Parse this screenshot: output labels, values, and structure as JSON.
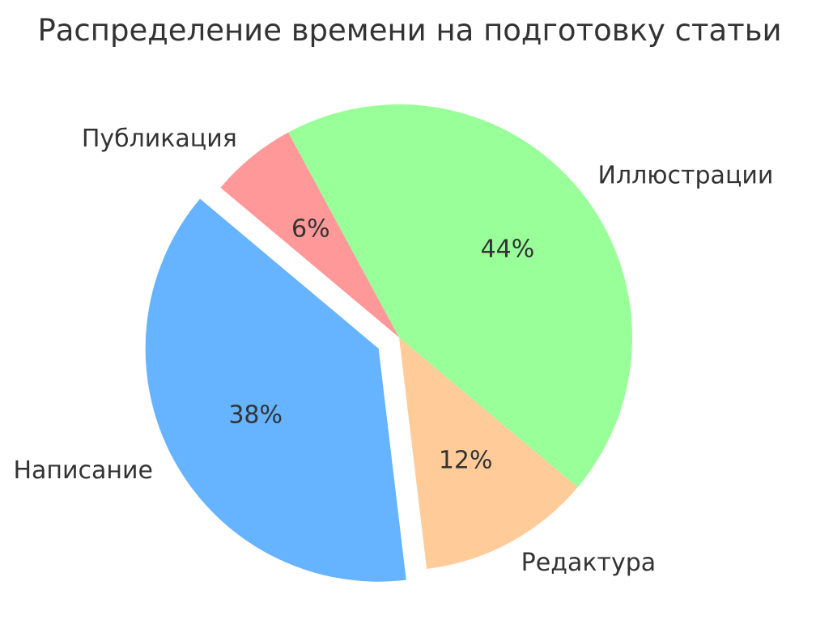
{
  "chart_data": {
    "type": "pie",
    "title": "Распределение времени на подготовку статьи",
    "categories": [
      "Написание",
      "Редактура",
      "Иллюстрации",
      "Публикация"
    ],
    "values": [
      38,
      12,
      44,
      6
    ],
    "percent_labels": [
      "38%",
      "12%",
      "44%",
      "6%"
    ],
    "colors": [
      "#66b3ff",
      "#ffcc99",
      "#99ff99",
      "#ff9999"
    ],
    "exploded": [
      "Написание"
    ],
    "start_angle_deg": 140,
    "direction": "counterclockwise",
    "legend": "none"
  }
}
